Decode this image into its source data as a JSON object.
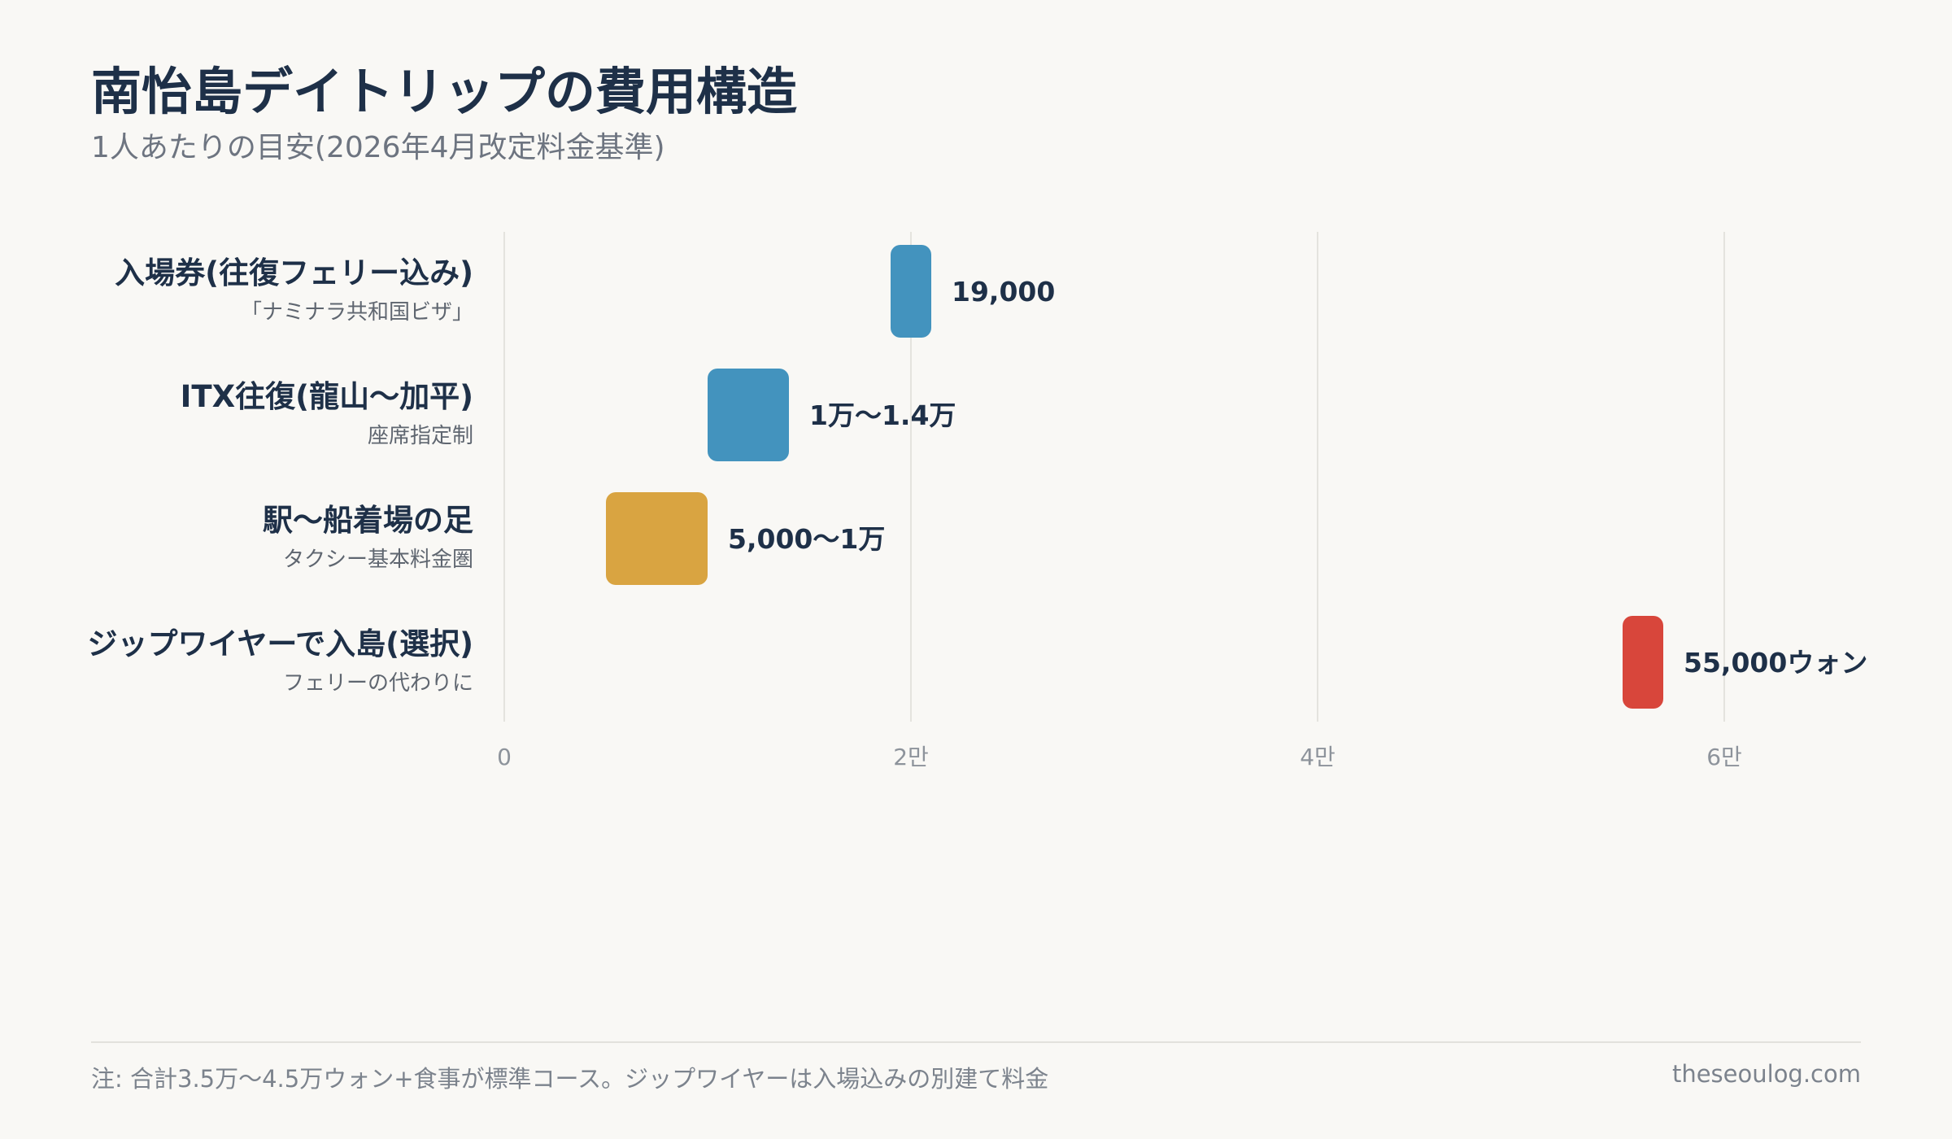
{
  "header": {
    "title": "南怡島デイトリップの費用構造",
    "subtitle": "1人あたりの目安(2026年4月改定料金基準)"
  },
  "chart_data": {
    "type": "bar",
    "orientation": "horizontal-range",
    "categories": [
      {
        "label": "入場券(往復フェリー込み)",
        "sublabel": "「ナミナラ共和国ビザ」",
        "range": [
          19000,
          21000
        ],
        "value_label": "19,000",
        "color": "#4393be"
      },
      {
        "label": "ITX往復(龍山〜加平)",
        "sublabel": "座席指定制",
        "range": [
          10000,
          14000
        ],
        "value_label": "1万〜1.4万",
        "color": "#4393be"
      },
      {
        "label": "駅〜船着場の足",
        "sublabel": "タクシー基本料金圏",
        "range": [
          5000,
          10000
        ],
        "value_label": "5,000〜1万",
        "color": "#d9a441"
      },
      {
        "label": "ジップワイヤーで入島(選択)",
        "sublabel": "フェリーの代わりに",
        "range": [
          55000,
          57000
        ],
        "value_label": "55,000ウォン",
        "color": "#d8463b"
      }
    ],
    "xlim": [
      0,
      67000
    ],
    "ticks": [
      {
        "value": 0,
        "label": "0"
      },
      {
        "value": 20000,
        "label": "2만"
      },
      {
        "value": 40000,
        "label": "4만"
      },
      {
        "value": 60000,
        "label": "6만"
      }
    ],
    "grid": true,
    "legend": "none"
  },
  "footer": {
    "note": "注: 合計3.5万〜4.5万ウォン+食事が標準コース。ジップワイヤーは入場込みの別建て料金",
    "source": "theseoulog.com"
  }
}
